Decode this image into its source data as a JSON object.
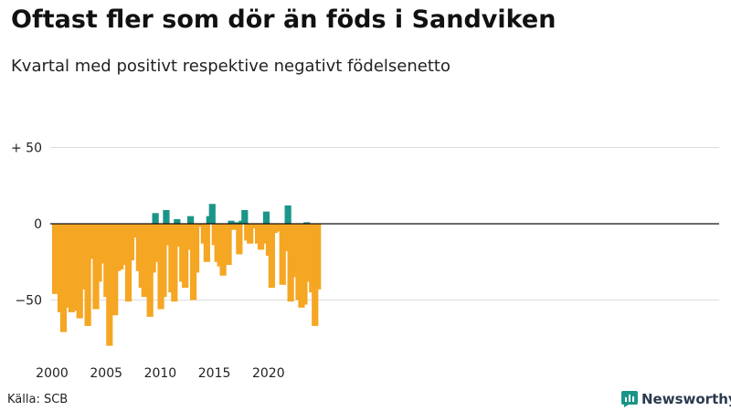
{
  "header": {
    "title": "Oftast fler som dör än föds i Sandviken",
    "subtitle": "Kvartal med positivt respektive negativt födelsenetto"
  },
  "footer": {
    "source": "Källa: SCB",
    "brand": "Newsworthy"
  },
  "colors": {
    "positive": "#1a9688",
    "negative": "#f5a623",
    "grid": "#dddddd",
    "zero": "#111111"
  },
  "chart_data": {
    "type": "bar",
    "title": "Oftast fler som dör än föds i Sandviken",
    "subtitle": "Kvartal med positivt respektive negativt födelsenetto",
    "xlabel": "",
    "ylabel": "",
    "ylim": [
      -82,
      55
    ],
    "y_ticks": [
      {
        "value": 50,
        "label": "+ 50"
      },
      {
        "value": 0,
        "label": "0"
      },
      {
        "value": -50,
        "label": "−50"
      }
    ],
    "x_ticks": [
      {
        "index": 0,
        "label": "2000"
      },
      {
        "index": 20,
        "label": "2005"
      },
      {
        "index": 40,
        "label": "2010"
      },
      {
        "index": 60,
        "label": "2015"
      },
      {
        "index": 80,
        "label": "2020"
      }
    ],
    "start_quarter": "2000 Q1",
    "series": [
      {
        "name": "Födelsenetto",
        "values": [
          -46,
          -31,
          -58,
          -71,
          -55,
          -35,
          -58,
          -57,
          -49,
          -62,
          -28,
          -43,
          -67,
          -23,
          -22,
          -56,
          -38,
          -1,
          -26,
          -48,
          -80,
          -18,
          -60,
          -31,
          -30,
          -13,
          -27,
          -51,
          -24,
          -4,
          -9,
          -31,
          -42,
          -48,
          -26,
          -61,
          -32,
          7,
          -25,
          -56,
          -48,
          9,
          -14,
          -45,
          -51,
          3,
          -15,
          -38,
          -42,
          -17,
          5,
          -50,
          -32,
          -2,
          0,
          -13,
          -25,
          5,
          13,
          -14,
          -25,
          -28,
          -34,
          -12,
          -27,
          2,
          -4,
          1,
          -20,
          2,
          9,
          -11,
          -13,
          -3,
          0,
          -13,
          -17,
          -13,
          8,
          -21,
          -42,
          -6,
          -5,
          -5,
          -40,
          -18,
          12,
          -51,
          -35,
          -13,
          -50,
          -55,
          -53,
          1,
          -38,
          -45,
          -67,
          -43
        ]
      }
    ]
  }
}
